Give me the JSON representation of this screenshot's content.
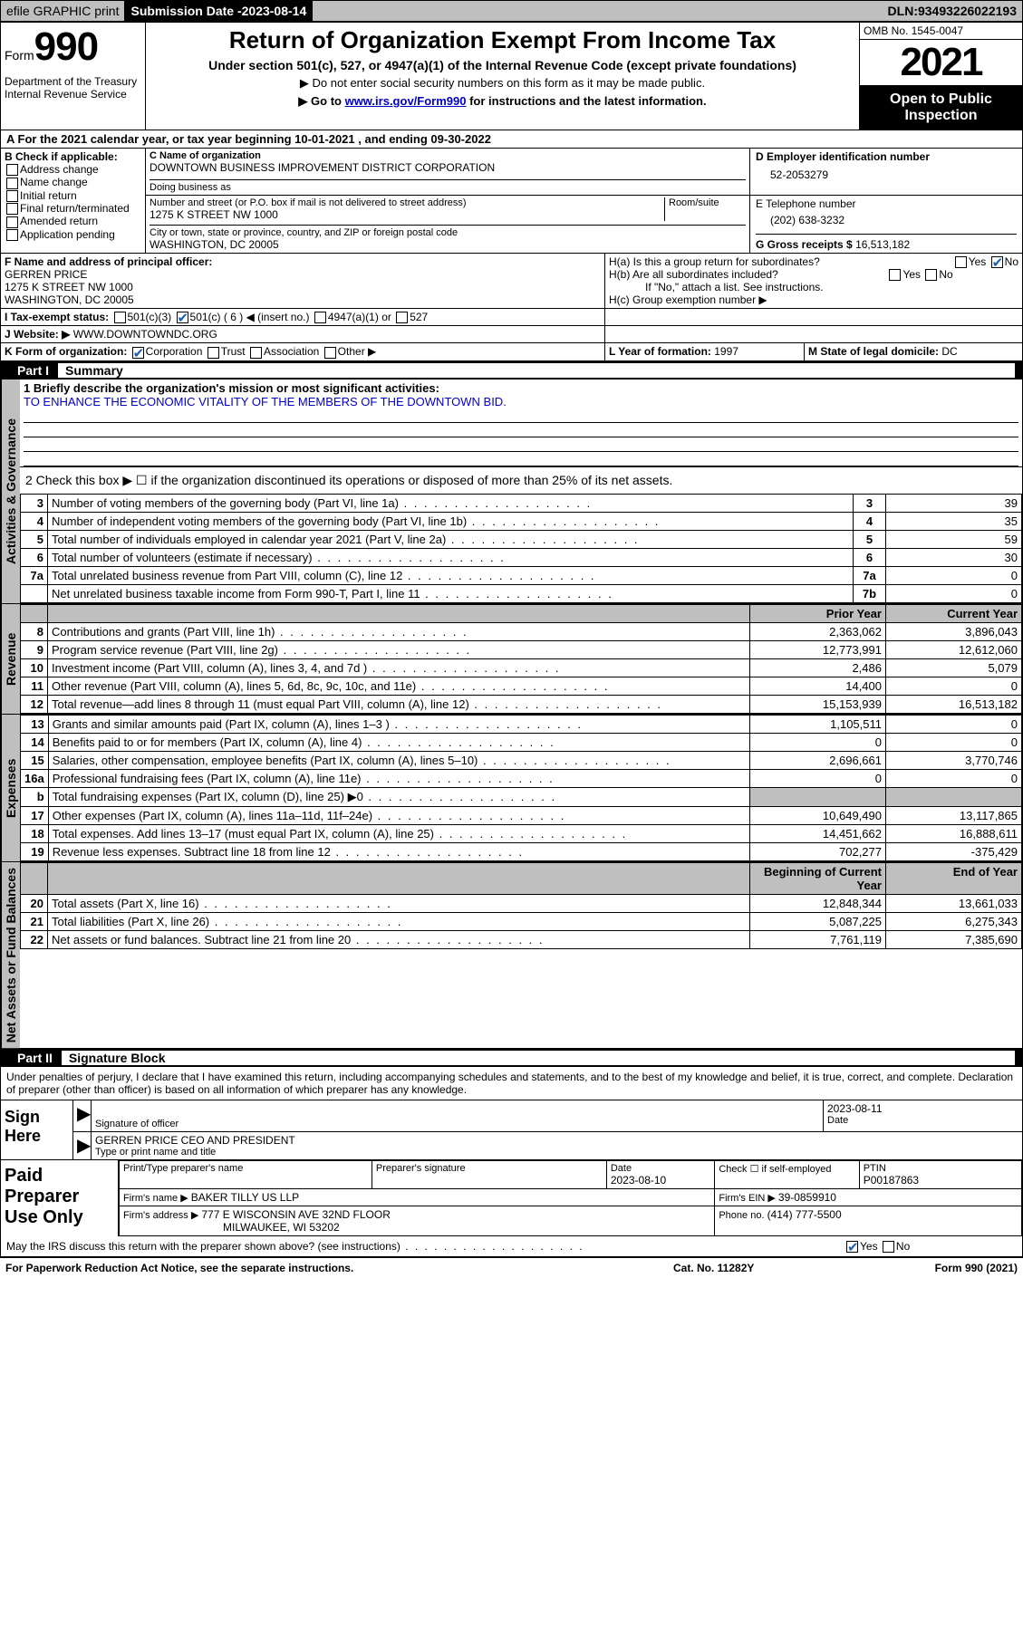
{
  "topbar": {
    "efile": "efile GRAPHIC print",
    "submission_label": "Submission Date - ",
    "submission_date": "2023-08-14",
    "dln_label": "DLN: ",
    "dln": "93493226022193"
  },
  "header": {
    "form_word": "Form",
    "form_num": "990",
    "dept": "Department of the Treasury\nInternal Revenue Service",
    "title": "Return of Organization Exempt From Income Tax",
    "sub1": "Under section 501(c), 527, or 4947(a)(1) of the Internal Revenue Code (except private foundations)",
    "sub2": "▶ Do not enter social security numbers on this form as it may be made public.",
    "sub3_pre": "▶ Go to ",
    "sub3_link": "www.irs.gov/Form990",
    "sub3_post": " for instructions and the latest information.",
    "omb": "OMB No. 1545-0047",
    "year": "2021",
    "open": "Open to Public Inspection"
  },
  "line_a": {
    "text_pre": "A For the 2021 calendar year, or tax year beginning ",
    "begin": "10-01-2021",
    "mid": " , and ending ",
    "end": "09-30-2022"
  },
  "box_b": {
    "hdr": "B Check if applicable:",
    "opts": [
      "Address change",
      "Name change",
      "Initial return",
      "Final return/terminated",
      "Amended return",
      "Application pending"
    ]
  },
  "box_c": {
    "name_lbl": "C Name of organization",
    "name": "DOWNTOWN BUSINESS IMPROVEMENT DISTRICT CORPORATION",
    "dba_lbl": "Doing business as",
    "dba": "",
    "street_lbl": "Number and street (or P.O. box if mail is not delivered to street address)",
    "room_lbl": "Room/suite",
    "street": "1275 K STREET NW 1000",
    "city_lbl": "City or town, state or province, country, and ZIP or foreign postal code",
    "city": "WASHINGTON, DC  20005"
  },
  "box_d": {
    "lbl": "D Employer identification number",
    "val": "52-2053279"
  },
  "box_e": {
    "lbl": "E Telephone number",
    "val": "(202) 638-3232"
  },
  "box_g": {
    "lbl": "G Gross receipts $ ",
    "val": "16,513,182"
  },
  "box_f": {
    "lbl": "F Name and address of principal officer:",
    "name": "GERREN PRICE",
    "addr1": "1275 K STREET NW 1000",
    "addr2": "WASHINGTON, DC  20005"
  },
  "box_h": {
    "ha": "H(a)  Is this a group return for subordinates?",
    "ha_yes": "Yes",
    "ha_no": "No",
    "hb": "H(b)  Are all subordinates included?",
    "hb_yes": "Yes",
    "hb_no": "No",
    "hb_note": "If \"No,\" attach a list. See instructions.",
    "hc": "H(c)  Group exemption number ▶"
  },
  "row_i": {
    "lbl": "I  Tax-exempt status:",
    "opt1": "501(c)(3)",
    "opt2_pre": "501(c) ( ",
    "opt2_num": "6",
    "opt2_post": " ) ◀ (insert no.)",
    "opt3": "4947(a)(1) or",
    "opt4": "527"
  },
  "row_j": {
    "lbl": "J  Website: ▶ ",
    "val": "WWW.DOWNTOWNDC.ORG"
  },
  "row_k": {
    "lbl": "K Form of organization:",
    "opts": [
      "Corporation",
      "Trust",
      "Association",
      "Other ▶"
    ],
    "l_lbl": "L Year of formation: ",
    "l_val": "1997",
    "m_lbl": "M State of legal domicile: ",
    "m_val": "DC"
  },
  "part1": {
    "part": "Part I",
    "title": "Summary",
    "q1_lbl": "1  Briefly describe the organization's mission or most significant activities:",
    "q1_val": "TO ENHANCE THE ECONOMIC VITALITY OF THE MEMBERS OF THE DOWNTOWN BID.",
    "q2": "2   Check this box ▶ ☐  if the organization discontinued its operations or disposed of more than 25% of its net assets.",
    "rows_gov": [
      {
        "n": "3",
        "d": "Number of voting members of the governing body (Part VI, line 1a)",
        "b": "3",
        "v": "39"
      },
      {
        "n": "4",
        "d": "Number of independent voting members of the governing body (Part VI, line 1b)",
        "b": "4",
        "v": "35"
      },
      {
        "n": "5",
        "d": "Total number of individuals employed in calendar year 2021 (Part V, line 2a)",
        "b": "5",
        "v": "59"
      },
      {
        "n": "6",
        "d": "Total number of volunteers (estimate if necessary)",
        "b": "6",
        "v": "30"
      },
      {
        "n": "7a",
        "d": "Total unrelated business revenue from Part VIII, column (C), line 12",
        "b": "7a",
        "v": "0"
      },
      {
        "n": "",
        "d": "Net unrelated business taxable income from Form 990-T, Part I, line 11",
        "b": "7b",
        "v": "0"
      }
    ],
    "col_hdr_prior": "Prior Year",
    "col_hdr_curr": "Current Year",
    "rows_rev": [
      {
        "n": "8",
        "d": "Contributions and grants (Part VIII, line 1h)",
        "p": "2,363,062",
        "c": "3,896,043"
      },
      {
        "n": "9",
        "d": "Program service revenue (Part VIII, line 2g)",
        "p": "12,773,991",
        "c": "12,612,060"
      },
      {
        "n": "10",
        "d": "Investment income (Part VIII, column (A), lines 3, 4, and 7d )",
        "p": "2,486",
        "c": "5,079"
      },
      {
        "n": "11",
        "d": "Other revenue (Part VIII, column (A), lines 5, 6d, 8c, 9c, 10c, and 11e)",
        "p": "14,400",
        "c": "0"
      },
      {
        "n": "12",
        "d": "Total revenue—add lines 8 through 11 (must equal Part VIII, column (A), line 12)",
        "p": "15,153,939",
        "c": "16,513,182"
      }
    ],
    "rows_exp": [
      {
        "n": "13",
        "d": "Grants and similar amounts paid (Part IX, column (A), lines 1–3 )",
        "p": "1,105,511",
        "c": "0"
      },
      {
        "n": "14",
        "d": "Benefits paid to or for members (Part IX, column (A), line 4)",
        "p": "0",
        "c": "0"
      },
      {
        "n": "15",
        "d": "Salaries, other compensation, employee benefits (Part IX, column (A), lines 5–10)",
        "p": "2,696,661",
        "c": "3,770,746"
      },
      {
        "n": "16a",
        "d": "Professional fundraising fees (Part IX, column (A), line 11e)",
        "p": "0",
        "c": "0"
      },
      {
        "n": "b",
        "d": "Total fundraising expenses (Part IX, column (D), line 25) ▶0",
        "p": "",
        "c": "",
        "shade": true
      },
      {
        "n": "17",
        "d": "Other expenses (Part IX, column (A), lines 11a–11d, 11f–24e)",
        "p": "10,649,490",
        "c": "13,117,865"
      },
      {
        "n": "18",
        "d": "Total expenses. Add lines 13–17 (must equal Part IX, column (A), line 25)",
        "p": "14,451,662",
        "c": "16,888,611"
      },
      {
        "n": "19",
        "d": "Revenue less expenses. Subtract line 18 from line 12",
        "p": "702,277",
        "c": "-375,429"
      }
    ],
    "col_hdr_begin": "Beginning of Current Year",
    "col_hdr_end": "End of Year",
    "rows_net": [
      {
        "n": "20",
        "d": "Total assets (Part X, line 16)",
        "p": "12,848,344",
        "c": "13,661,033"
      },
      {
        "n": "21",
        "d": "Total liabilities (Part X, line 26)",
        "p": "5,087,225",
        "c": "6,275,343"
      },
      {
        "n": "22",
        "d": "Net assets or fund balances. Subtract line 21 from line 20",
        "p": "7,761,119",
        "c": "7,385,690"
      }
    ],
    "vtab_gov": "Activities & Governance",
    "vtab_rev": "Revenue",
    "vtab_exp": "Expenses",
    "vtab_net": "Net Assets or Fund Balances"
  },
  "part2": {
    "part": "Part II",
    "title": "Signature Block",
    "decl": "Under penalties of perjury, I declare that I have examined this return, including accompanying schedules and statements, and to the best of my knowledge and belief, it is true, correct, and complete. Declaration of preparer (other than officer) is based on all information of which preparer has any knowledge.",
    "sign_here": "Sign Here",
    "sig_officer_lbl": "Signature of officer",
    "sig_date_lbl": "Date",
    "sig_date": "2023-08-11",
    "sig_name": "GERREN PRICE CEO AND PRESIDENT",
    "sig_name_lbl": "Type or print name and title",
    "paid": "Paid Preparer Use Only",
    "prep_name_lbl": "Print/Type preparer's name",
    "prep_sig_lbl": "Preparer's signature",
    "prep_date_lbl": "Date",
    "prep_date": "2023-08-10",
    "prep_check_lbl": "Check ☐ if self-employed",
    "ptin_lbl": "PTIN",
    "ptin": "P00187863",
    "firm_name_lbl": "Firm's name      ▶ ",
    "firm_name": "BAKER TILLY US LLP",
    "firm_ein_lbl": "Firm's EIN ▶ ",
    "firm_ein": "39-0859910",
    "firm_addr_lbl": "Firm's address ▶ ",
    "firm_addr1": "777 E WISCONSIN AVE 32ND FLOOR",
    "firm_addr2": "MILWAUKEE, WI  53202",
    "firm_phone_lbl": "Phone no. ",
    "firm_phone": "(414) 777-5500",
    "discuss": "May the IRS discuss this return with the preparer shown above? (see instructions)",
    "discuss_yes": "Yes",
    "discuss_no": "No"
  },
  "footer": {
    "left": "For Paperwork Reduction Act Notice, see the separate instructions.",
    "mid": "Cat. No. 11282Y",
    "right": "Form 990 (2021)"
  }
}
